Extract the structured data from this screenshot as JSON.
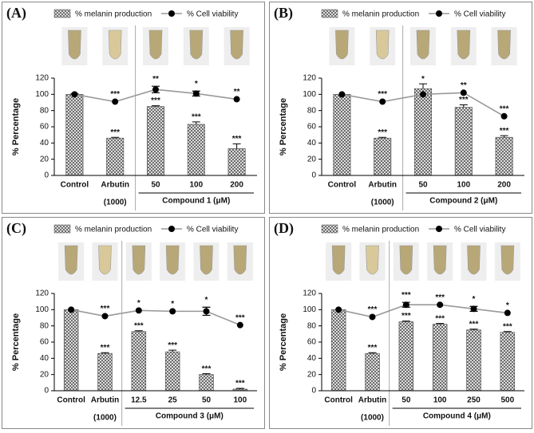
{
  "chart_data": [
    {
      "type": "bar-line",
      "label": "(A)",
      "ylabel": "% Percentage",
      "categories": [
        "Control",
        "Arbutin",
        "50",
        "100",
        "200"
      ],
      "x_sublabels": [
        "(1000)",
        "Compound 1 (μM)"
      ],
      "ylim": [
        0,
        120
      ],
      "yticks": [
        0,
        20,
        40,
        60,
        80,
        100,
        120
      ],
      "series": [
        {
          "name": "% melanin production",
          "type": "bar",
          "color": "#555555",
          "values": [
            100,
            46,
            85,
            63,
            33
          ],
          "errors": [
            1,
            1,
            1,
            3,
            6
          ],
          "significance": [
            null,
            "***",
            "***",
            "***",
            "***"
          ],
          "significance_color": "#000000"
        },
        {
          "name": "% Cell viability",
          "type": "line",
          "color": "#999999",
          "marker_color": "#000000",
          "values": [
            100,
            91,
            106,
            101,
            94
          ],
          "errors": [
            0,
            0,
            4,
            3,
            0
          ],
          "significance": [
            null,
            "***",
            "**",
            "*",
            "**"
          ],
          "significance_color": "#e02020"
        }
      ]
    },
    {
      "type": "bar-line",
      "label": "(B)",
      "ylabel": "% Percentage",
      "categories": [
        "Control",
        "Arbutin",
        "50",
        "100",
        "200"
      ],
      "x_sublabels": [
        "(1000)",
        "Compound 2 (μM)"
      ],
      "ylim": [
        0,
        120
      ],
      "yticks": [
        0,
        20,
        40,
        60,
        80,
        100,
        120
      ],
      "series": [
        {
          "name": "% melanin production",
          "type": "bar",
          "color": "#555555",
          "values": [
            100,
            46,
            107,
            84,
            47
          ],
          "errors": [
            0,
            1,
            6,
            3,
            2
          ],
          "significance": [
            null,
            "***",
            "*",
            "***",
            "***"
          ],
          "significance_color": "#000000"
        },
        {
          "name": "% Cell viability",
          "type": "line",
          "color": "#999999",
          "marker_color": "#000000",
          "values": [
            100,
            91,
            100,
            102,
            73
          ],
          "errors": [
            0,
            0,
            0,
            0,
            0
          ],
          "significance": [
            null,
            "***",
            null,
            "**",
            "***"
          ],
          "significance_color": "#e02020"
        }
      ]
    },
    {
      "type": "bar-line",
      "label": "(C)",
      "ylabel": "% Percentage",
      "categories": [
        "Control",
        "Arbutin",
        "12.5",
        "25",
        "50",
        "100"
      ],
      "x_sublabels": [
        "(1000)",
        "Compound 3 (μM)"
      ],
      "ylim": [
        0,
        120
      ],
      "yticks": [
        0,
        20,
        40,
        60,
        80,
        100,
        120
      ],
      "series": [
        {
          "name": "% melanin production",
          "type": "bar",
          "color": "#555555",
          "values": [
            100,
            46,
            73,
            48,
            20,
            2
          ],
          "errors": [
            0,
            1,
            1,
            2,
            1,
            1
          ],
          "significance": [
            null,
            "***",
            "***",
            "***",
            "***",
            "***"
          ],
          "significance_color": "#000000"
        },
        {
          "name": "% Cell viability",
          "type": "line",
          "color": "#999999",
          "marker_color": "#000000",
          "values": [
            100,
            92,
            99,
            98,
            98,
            81
          ],
          "errors": [
            0,
            0,
            0,
            0,
            5,
            0
          ],
          "significance": [
            null,
            "***",
            "*",
            "*",
            "*",
            "***"
          ],
          "significance_color": "#e02020"
        }
      ]
    },
    {
      "type": "bar-line",
      "label": "(D)",
      "ylabel": "% Percentage",
      "categories": [
        "Control",
        "Arbutin",
        "50",
        "100",
        "250",
        "500"
      ],
      "x_sublabels": [
        "(1000)",
        "Compound 4 (μM)"
      ],
      "ylim": [
        0,
        120
      ],
      "yticks": [
        0,
        20,
        40,
        60,
        80,
        100,
        120
      ],
      "series": [
        {
          "name": "% melanin production",
          "type": "bar",
          "color": "#555555",
          "values": [
            100,
            46,
            85,
            82,
            75,
            72
          ],
          "errors": [
            0,
            1,
            1,
            1,
            1,
            1
          ],
          "significance": [
            null,
            "***",
            "***",
            "***",
            "***",
            "***"
          ],
          "significance_color": "#000000"
        },
        {
          "name": "% Cell viability",
          "type": "line",
          "color": "#999999",
          "marker_color": "#000000",
          "values": [
            100,
            91,
            106,
            106,
            101,
            96
          ],
          "errors": [
            0,
            0,
            3,
            0,
            3,
            0
          ],
          "significance": [
            null,
            "***",
            "***",
            "***",
            "*",
            "*"
          ],
          "significance_color": "#e02020"
        }
      ]
    }
  ]
}
